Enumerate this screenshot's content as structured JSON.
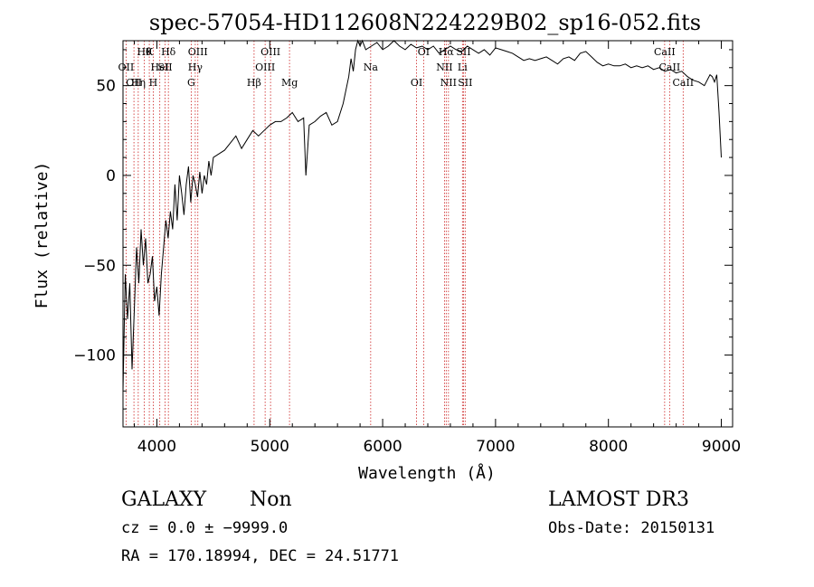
{
  "chart_data": {
    "type": "line",
    "title": "spec-57054-HD112608N224229B02_sp16-052.fits",
    "xlabel": "Wavelength (Å)",
    "ylabel": "Flux (relative)",
    "xlim": [
      3700,
      9100
    ],
    "ylim": [
      -140,
      75
    ],
    "x_ticks": [
      4000,
      5000,
      6000,
      7000,
      8000,
      9000
    ],
    "x_tick_labels": [
      "4000",
      "5000",
      "6000",
      "7000",
      "8000",
      "9000"
    ],
    "y_ticks": [
      -100,
      -50,
      0,
      50
    ],
    "y_tick_labels": [
      "−100",
      "−50",
      "0",
      "50"
    ],
    "grid": false,
    "series": [
      {
        "x": [
          3700,
          3720,
          3740,
          3760,
          3780,
          3800,
          3820,
          3840,
          3860,
          3880,
          3900,
          3920,
          3940,
          3960,
          3980,
          4000,
          4020,
          4040,
          4060,
          4080,
          4100,
          4120,
          4140,
          4160,
          4180,
          4200,
          4220,
          4240,
          4260,
          4280,
          4300,
          4320,
          4340,
          4360,
          4380,
          4400,
          4420,
          4440,
          4460,
          4480,
          4500,
          4550,
          4600,
          4650,
          4700,
          4750,
          4800,
          4850,
          4900,
          4950,
          5000,
          5050,
          5100,
          5150,
          5200,
          5250,
          5300,
          5320,
          5350,
          5400,
          5450,
          5500,
          5550,
          5600,
          5650,
          5700,
          5720,
          5740,
          5760,
          5780,
          5800,
          5820,
          5850,
          5900,
          5950,
          6000,
          6050,
          6100,
          6150,
          6200,
          6250,
          6300,
          6350,
          6400,
          6450,
          6500,
          6550,
          6600,
          6650,
          6700,
          6750,
          6800,
          6850,
          6900,
          6950,
          7000,
          7050,
          7100,
          7150,
          7200,
          7250,
          7300,
          7350,
          7400,
          7450,
          7500,
          7550,
          7600,
          7650,
          7700,
          7750,
          7800,
          7850,
          7900,
          7950,
          8000,
          8050,
          8100,
          8150,
          8200,
          8250,
          8300,
          8350,
          8400,
          8450,
          8500,
          8550,
          8600,
          8650,
          8700,
          8750,
          8800,
          8850,
          8900,
          8920,
          8940,
          8960,
          8980,
          9000
        ],
        "y": [
          -120,
          -55,
          -80,
          -60,
          -108,
          -75,
          -40,
          -60,
          -30,
          -50,
          -35,
          -60,
          -55,
          -45,
          -70,
          -62,
          -78,
          -55,
          -40,
          -25,
          -35,
          -20,
          -30,
          -5,
          -25,
          0,
          -10,
          -22,
          -5,
          5,
          -15,
          0,
          -5,
          -12,
          2,
          -10,
          0,
          -5,
          8,
          0,
          10,
          12,
          14,
          18,
          22,
          15,
          20,
          25,
          22,
          25,
          28,
          30,
          30,
          32,
          35,
          30,
          32,
          0,
          28,
          30,
          33,
          35,
          28,
          30,
          40,
          55,
          65,
          58,
          70,
          75,
          72,
          75,
          70,
          72,
          74,
          70,
          72,
          75,
          72,
          70,
          73,
          71,
          72,
          70,
          72,
          68,
          70,
          72,
          70,
          69,
          72,
          70,
          68,
          70,
          67,
          71,
          70,
          69,
          68,
          66,
          64,
          65,
          64,
          65,
          66,
          64,
          62,
          65,
          66,
          64,
          68,
          69,
          66,
          63,
          61,
          62,
          61,
          61,
          62,
          60,
          61,
          60,
          61,
          59,
          60,
          58,
          59,
          57,
          58,
          55,
          53,
          52,
          50,
          56,
          55,
          52,
          56,
          35,
          10
        ]
      }
    ],
    "lines": [
      {
        "wavelength": 3727,
        "label": "OII",
        "row": 2
      },
      {
        "wavelength": 3797,
        "label": "OII",
        "row": 3
      },
      {
        "wavelength": 3835,
        "label": "Hη",
        "row": 3
      },
      {
        "wavelength": 3889,
        "label": "Hθ",
        "row": 1
      },
      {
        "wavelength": 3933,
        "label": "K",
        "row": 1
      },
      {
        "wavelength": 3968,
        "label": "H",
        "row": 3
      },
      {
        "wavelength": 4026,
        "label": "HeI",
        "row": 2
      },
      {
        "wavelength": 4072,
        "label": "SII",
        "row": 2
      },
      {
        "wavelength": 4102,
        "label": "Hδ",
        "row": 1
      },
      {
        "wavelength": 4304,
        "label": "G",
        "row": 3
      },
      {
        "wavelength": 4340,
        "label": "Hγ",
        "row": 2
      },
      {
        "wavelength": 4363,
        "label": "OIII",
        "row": 1
      },
      {
        "wavelength": 4861,
        "label": "Hβ",
        "row": 3
      },
      {
        "wavelength": 4959,
        "label": "OIII",
        "row": 2
      },
      {
        "wavelength": 5007,
        "label": "OIII",
        "row": 1
      },
      {
        "wavelength": 5175,
        "label": "Mg",
        "row": 3
      },
      {
        "wavelength": 5894,
        "label": "Na",
        "row": 2
      },
      {
        "wavelength": 6300,
        "label": "OI",
        "row": 3
      },
      {
        "wavelength": 6363,
        "label": "OI",
        "row": 1
      },
      {
        "wavelength": 6548,
        "label": "NII",
        "row": 2
      },
      {
        "wavelength": 6563,
        "label": "Hα",
        "row": 1
      },
      {
        "wavelength": 6583,
        "label": "NII",
        "row": 3
      },
      {
        "wavelength": 6707,
        "label": "Li",
        "row": 2
      },
      {
        "wavelength": 6716,
        "label": "SII",
        "row": 1
      },
      {
        "wavelength": 6731,
        "label": "SII",
        "row": 3
      },
      {
        "wavelength": 8498,
        "label": "CaII",
        "row": 1
      },
      {
        "wavelength": 8542,
        "label": "CaII",
        "row": 2
      },
      {
        "wavelength": 8662,
        "label": "CaII",
        "row": 3
      }
    ]
  },
  "footer": {
    "object_class": "GALAXY",
    "subclass": "Non",
    "redshift_line": "cz = 0.0 ± −9999.0",
    "coords_line": "RA = 170.18994, DEC =  24.51771",
    "survey": "LAMOST DR3",
    "obs_date_line": "Obs-Date: 20150131"
  }
}
